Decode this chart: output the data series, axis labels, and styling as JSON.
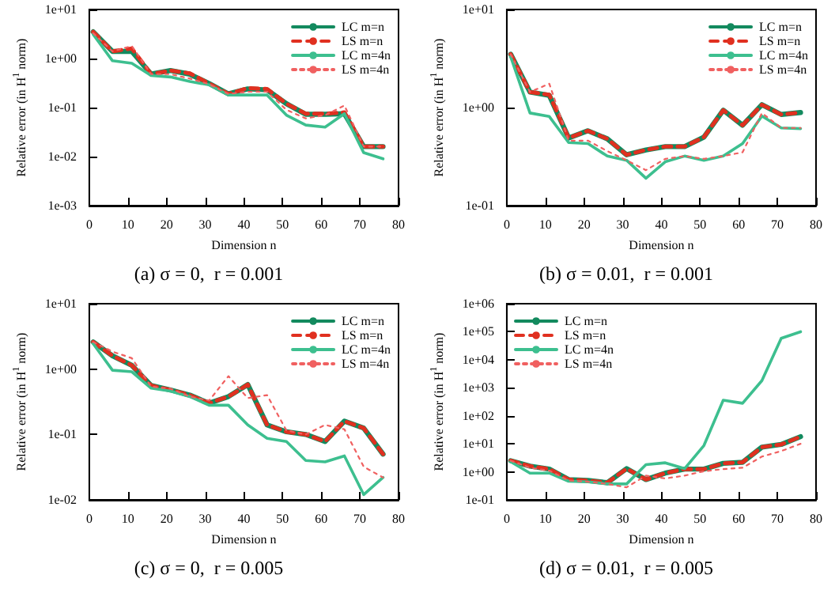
{
  "chart_data": [
    {
      "type": "line",
      "title": "(a) σ = 0,  r = 0.001",
      "xlabel": "Dimension n",
      "ylabel": "Relative error (in H$^{1}$ norm)",
      "log": "y",
      "legend": "top right",
      "grid": false,
      "marker": "none",
      "x": [
        1,
        6,
        11,
        16,
        21,
        26,
        31,
        36,
        41,
        46,
        51,
        56,
        61,
        66,
        71,
        76
      ],
      "xlim": [
        0,
        80
      ],
      "xticks": [
        0,
        10,
        20,
        30,
        40,
        50,
        60,
        70,
        80
      ],
      "ylim": [
        0.001,
        10
      ],
      "yticks": [
        {
          "value": 0.001,
          "label": "1e-03"
        },
        {
          "value": 0.01,
          "label": "1e-02"
        },
        {
          "value": 0.1,
          "label": "1e-01"
        },
        {
          "value": 1,
          "label": "1e+00"
        },
        {
          "value": 10,
          "label": "1e+01"
        }
      ],
      "series": [
        {
          "name": "LC m=n",
          "color": "#138a5e",
          "line_style": "solid",
          "values": [
            3.5,
            1.4,
            1.4,
            0.48,
            0.57,
            0.48,
            0.31,
            0.19,
            0.24,
            0.23,
            0.12,
            0.073,
            0.073,
            0.075,
            0.016,
            0.016
          ]
        },
        {
          "name": "LS m=n",
          "color": "#e03020",
          "line_style": "dashed",
          "values": [
            3.5,
            1.4,
            1.6,
            0.48,
            0.57,
            0.5,
            0.31,
            0.19,
            0.25,
            0.24,
            0.12,
            0.075,
            0.075,
            0.08,
            0.016,
            0.016
          ]
        },
        {
          "name": "LC m=4n",
          "color": "#3dbf8f",
          "line_style": "solid",
          "values": [
            3.1,
            0.9,
            0.8,
            0.45,
            0.42,
            0.34,
            0.29,
            0.18,
            0.18,
            0.18,
            0.07,
            0.044,
            0.04,
            0.075,
            0.012,
            0.009
          ]
        },
        {
          "name": "LS m=4n",
          "color": "#f06060",
          "line_style": "dotted",
          "values": [
            3.3,
            1.4,
            1.8,
            0.48,
            0.48,
            0.39,
            0.3,
            0.19,
            0.21,
            0.21,
            0.09,
            0.06,
            0.07,
            0.11,
            0.016,
            0.016
          ]
        }
      ]
    },
    {
      "type": "line",
      "title": "(b) σ = 0.01,  r = 0.001",
      "xlabel": "Dimension n",
      "ylabel": "Relative error (in H$^{1}$ norm)",
      "log": "y",
      "legend": "top right",
      "grid": false,
      "marker": "none",
      "x": [
        1,
        6,
        11,
        16,
        21,
        26,
        31,
        36,
        41,
        46,
        51,
        56,
        61,
        66,
        71,
        76
      ],
      "xlim": [
        0,
        80
      ],
      "xticks": [
        0,
        10,
        20,
        30,
        40,
        50,
        60,
        70,
        80
      ],
      "ylim": [
        0.1,
        10
      ],
      "yticks": [
        {
          "value": 0.1,
          "label": "1e-01"
        },
        {
          "value": 1,
          "label": "1e+00"
        },
        {
          "value": 10,
          "label": "1e+01"
        }
      ],
      "series": [
        {
          "name": "LC m=n",
          "color": "#138a5e",
          "line_style": "solid",
          "values": [
            3.5,
            1.44,
            1.33,
            0.49,
            0.58,
            0.48,
            0.33,
            0.37,
            0.4,
            0.4,
            0.5,
            0.94,
            0.66,
            1.07,
            0.85,
            0.89
          ]
        },
        {
          "name": "LS m=n",
          "color": "#e03020",
          "line_style": "dashed",
          "values": [
            3.5,
            1.44,
            1.35,
            0.49,
            0.58,
            0.48,
            0.33,
            0.37,
            0.4,
            0.4,
            0.5,
            0.94,
            0.66,
            1.07,
            0.85,
            0.89
          ]
        },
        {
          "name": "LC m=4n",
          "color": "#3dbf8f",
          "line_style": "solid",
          "values": [
            3.3,
            0.88,
            0.81,
            0.44,
            0.43,
            0.32,
            0.29,
            0.19,
            0.28,
            0.32,
            0.29,
            0.32,
            0.43,
            0.82,
            0.62,
            0.61
          ]
        },
        {
          "name": "LS m=4n",
          "color": "#f06060",
          "line_style": "dotted",
          "values": [
            3.5,
            1.44,
            1.75,
            0.46,
            0.46,
            0.36,
            0.29,
            0.23,
            0.3,
            0.32,
            0.3,
            0.32,
            0.35,
            0.88,
            0.62,
            0.62
          ]
        }
      ]
    },
    {
      "type": "line",
      "title": "(c) σ = 0,  r = 0.005",
      "xlabel": "Dimension n",
      "ylabel": "Relative error (in H$^{1}$ norm)",
      "log": "y",
      "legend": "top right",
      "grid": false,
      "marker": "none",
      "x": [
        1,
        6,
        11,
        16,
        21,
        26,
        31,
        36,
        41,
        46,
        51,
        56,
        61,
        66,
        71,
        76
      ],
      "xlim": [
        0,
        80
      ],
      "xticks": [
        0,
        10,
        20,
        30,
        40,
        50,
        60,
        70,
        80
      ],
      "ylim": [
        0.01,
        10
      ],
      "yticks": [
        {
          "value": 0.01,
          "label": "1e-02"
        },
        {
          "value": 0.1,
          "label": "1e-01"
        },
        {
          "value": 1,
          "label": "1e+00"
        },
        {
          "value": 10,
          "label": "1e+01"
        }
      ],
      "series": [
        {
          "name": "LC m=n",
          "color": "#138a5e",
          "line_style": "solid",
          "values": [
            2.6,
            1.6,
            1.14,
            0.56,
            0.48,
            0.4,
            0.3,
            0.38,
            0.58,
            0.14,
            0.11,
            0.1,
            0.078,
            0.16,
            0.125,
            0.05
          ]
        },
        {
          "name": "LS m=n",
          "color": "#e03020",
          "line_style": "dashed",
          "values": [
            2.6,
            1.6,
            1.14,
            0.56,
            0.48,
            0.4,
            0.3,
            0.38,
            0.58,
            0.14,
            0.11,
            0.1,
            0.078,
            0.16,
            0.125,
            0.05
          ]
        },
        {
          "name": "LC m=4n",
          "color": "#3dbf8f",
          "line_style": "solid",
          "values": [
            2.45,
            0.96,
            0.91,
            0.51,
            0.46,
            0.38,
            0.28,
            0.28,
            0.14,
            0.087,
            0.078,
            0.04,
            0.038,
            0.047,
            0.012,
            0.022
          ]
        },
        {
          "name": "LS m=4n",
          "color": "#f06060",
          "line_style": "dotted",
          "values": [
            2.6,
            1.85,
            1.47,
            0.54,
            0.5,
            0.38,
            0.33,
            0.78,
            0.36,
            0.4,
            0.115,
            0.1,
            0.14,
            0.12,
            0.032,
            0.022
          ]
        }
      ]
    },
    {
      "type": "line",
      "title": "(d) σ = 0.01,  r = 0.005",
      "xlabel": "Dimension n",
      "ylabel": "Relative error (in H$^{1}$ norm)",
      "log": "y",
      "legend": "top left",
      "grid": false,
      "marker": "none",
      "x": [
        1,
        6,
        11,
        16,
        21,
        26,
        31,
        36,
        41,
        46,
        51,
        56,
        61,
        66,
        71,
        76
      ],
      "xlim": [
        0,
        80
      ],
      "xticks": [
        0,
        10,
        20,
        30,
        40,
        50,
        60,
        70,
        80
      ],
      "ylim": [
        0.1,
        1000000
      ],
      "yticks": [
        {
          "value": 0.1,
          "label": "1e-01"
        },
        {
          "value": 1,
          "label": "1e+00"
        },
        {
          "value": 10,
          "label": "1e+01"
        },
        {
          "value": 100,
          "label": "1e+02"
        },
        {
          "value": 1000,
          "label": "1e+03"
        },
        {
          "value": 10000,
          "label": "1e+04"
        },
        {
          "value": 100000,
          "label": "1e+05"
        },
        {
          "value": 1000000,
          "label": "1e+06"
        }
      ],
      "series": [
        {
          "name": "LC m=n",
          "color": "#138a5e",
          "line_style": "solid",
          "values": [
            2.5,
            1.6,
            1.25,
            0.53,
            0.49,
            0.41,
            1.3,
            0.53,
            0.9,
            1.25,
            1.25,
            2,
            2.2,
            7.6,
            9.5,
            18
          ]
        },
        {
          "name": "LS m=n",
          "color": "#e03020",
          "line_style": "dashed",
          "values": [
            2.5,
            1.6,
            1.25,
            0.53,
            0.49,
            0.41,
            1.3,
            0.53,
            0.9,
            1.25,
            1.25,
            2,
            2.2,
            7.6,
            9.5,
            18
          ]
        },
        {
          "name": "LC m=4n",
          "color": "#3dbf8f",
          "line_style": "solid",
          "values": [
            2.3,
            0.9,
            0.9,
            0.46,
            0.44,
            0.37,
            0.37,
            1.8,
            2.1,
            1.3,
            8.7,
            360,
            280,
            1800,
            58000,
            100000
          ]
        },
        {
          "name": "LS m=4n",
          "color": "#f06060",
          "line_style": "dotted",
          "values": [
            2.5,
            1.4,
            1.1,
            0.49,
            0.44,
            0.37,
            0.28,
            0.73,
            0.58,
            0.73,
            1.05,
            1.25,
            1.4,
            3.5,
            5.5,
            10
          ]
        }
      ]
    }
  ]
}
